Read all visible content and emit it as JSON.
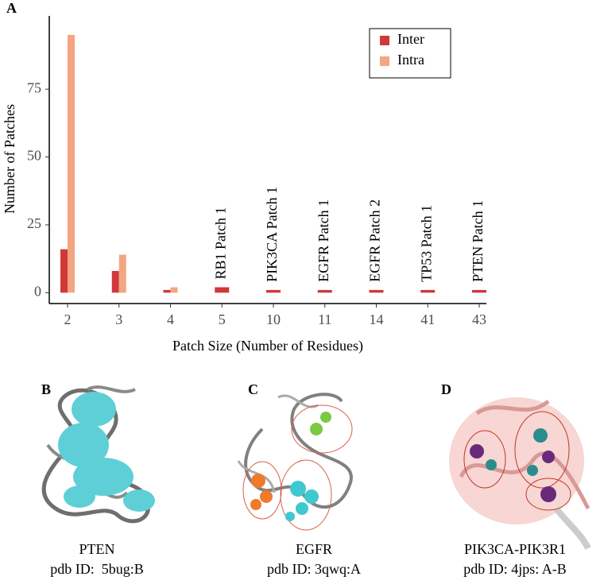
{
  "chart_data": {
    "type": "bar",
    "panel_label": "A",
    "categories": [
      "2",
      "3",
      "4",
      "5",
      "10",
      "11",
      "14",
      "41",
      "43"
    ],
    "series": [
      {
        "name": "Inter",
        "color": "#d0393a",
        "values": [
          16,
          8,
          1,
          2,
          1,
          1,
          1,
          1,
          1
        ]
      },
      {
        "name": "Intra",
        "color": "#f4a582",
        "values": [
          95,
          14,
          2,
          0,
          0,
          0,
          0,
          0,
          0
        ]
      }
    ],
    "bar_labels": [
      null,
      null,
      null,
      "RB1 Patch 1",
      "PIK3CA Patch 1",
      "EGFR Patch 1",
      "EGFR Patch 2",
      "TP53 Patch 1",
      "PTEN Patch 1"
    ],
    "xlabel": "Patch Size (Number of Residues)",
    "ylabel": "Number of Patches",
    "ylim": [
      -4,
      102
    ],
    "yticks": [
      0,
      25,
      50,
      75
    ],
    "grid": false,
    "legend": "top-right"
  },
  "panels": [
    {
      "label": "B",
      "name": "PTEN",
      "pdb": "pdb ID:  5bug:B"
    },
    {
      "label": "C",
      "name": "EGFR",
      "pdb": "pdb ID: 3qwq:A"
    },
    {
      "label": "D",
      "name": "PIK3CA-PIK3R1",
      "pdb": "pdb ID: 4jps: A-B"
    }
  ]
}
